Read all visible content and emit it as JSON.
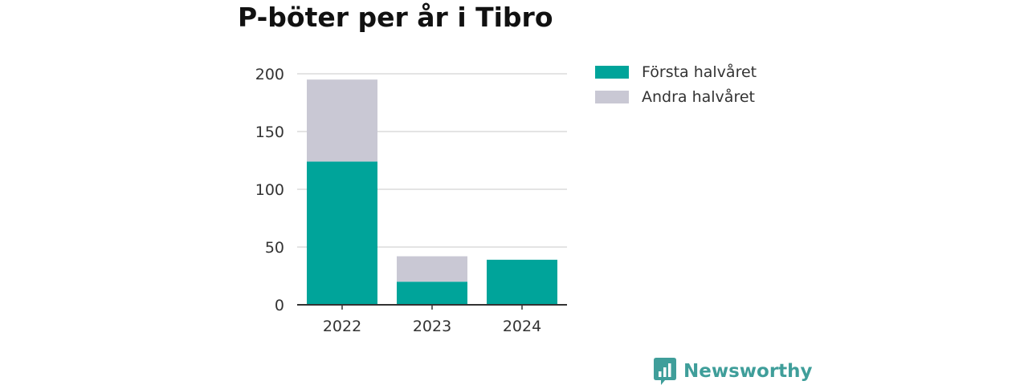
{
  "title": "P-böter per år i Tibro",
  "colors": {
    "first_half": "#00a49a",
    "second_half": "#c9c8d4",
    "brand": "#3f9e9a"
  },
  "legend": [
    {
      "label": "Första halvåret",
      "color": "#00a49a"
    },
    {
      "label": "Andra halvåret",
      "color": "#c9c8d4"
    }
  ],
  "brand": {
    "name": "Newsworthy",
    "icon": "bar-chart-icon"
  },
  "chart_data": {
    "type": "bar",
    "stacked": true,
    "title": "P-böter per år i Tibro",
    "categories": [
      "2022",
      "2023",
      "2024"
    ],
    "series": [
      {
        "name": "Första halvåret",
        "values": [
          124,
          20,
          39
        ]
      },
      {
        "name": "Andra halvåret",
        "values": [
          71,
          22,
          0
        ]
      }
    ],
    "yticks": [
      0,
      50,
      100,
      150,
      200
    ],
    "ylim": [
      0,
      200
    ],
    "xlabel": "",
    "ylabel": "",
    "grid": true,
    "legend_position": "right"
  }
}
